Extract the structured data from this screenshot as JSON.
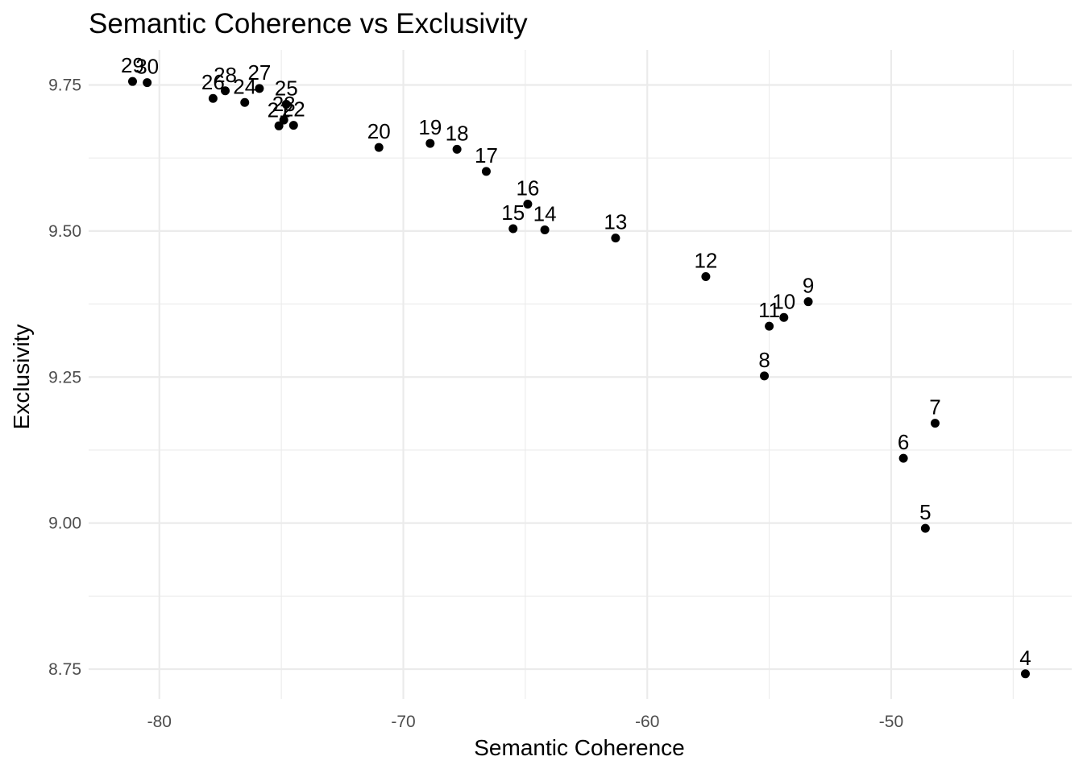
{
  "chart_data": {
    "type": "scatter",
    "title": "Semantic Coherence vs Exclusivity",
    "xlabel": "Semantic Coherence",
    "ylabel": "Exclusivity",
    "xlim": [
      -82.9,
      -42.6
    ],
    "ylim": [
      8.699,
      9.81
    ],
    "x_ticks": [
      -80,
      -70,
      -60,
      -50
    ],
    "y_ticks": [
      8.75,
      9.0,
      9.25,
      9.5,
      9.75
    ],
    "x_tick_labels": [
      "-80",
      "-70",
      "-60",
      "-50"
    ],
    "y_tick_labels": [
      "8.75",
      "9.00",
      "9.25",
      "9.50",
      "9.75"
    ],
    "grid": true,
    "points": [
      {
        "label": "4",
        "x": -44.5,
        "y": 8.742
      },
      {
        "label": "5",
        "x": -48.6,
        "y": 8.991
      },
      {
        "label": "6",
        "x": -49.5,
        "y": 9.111
      },
      {
        "label": "7",
        "x": -48.2,
        "y": 9.171
      },
      {
        "label": "8",
        "x": -55.2,
        "y": 9.252
      },
      {
        "label": "9",
        "x": -53.4,
        "y": 9.379
      },
      {
        "label": "10",
        "x": -54.4,
        "y": 9.352
      },
      {
        "label": "11",
        "x": -55.0,
        "y": 9.337
      },
      {
        "label": "12",
        "x": -57.6,
        "y": 9.422
      },
      {
        "label": "13",
        "x": -61.3,
        "y": 9.488
      },
      {
        "label": "14",
        "x": -64.2,
        "y": 9.502
      },
      {
        "label": "15",
        "x": -65.5,
        "y": 9.504
      },
      {
        "label": "16",
        "x": -64.9,
        "y": 9.546
      },
      {
        "label": "17",
        "x": -66.6,
        "y": 9.602
      },
      {
        "label": "18",
        "x": -67.8,
        "y": 9.64
      },
      {
        "label": "19",
        "x": -68.9,
        "y": 9.65
      },
      {
        "label": "20",
        "x": -71.0,
        "y": 9.643
      },
      {
        "label": "21",
        "x": -75.1,
        "y": 9.68
      },
      {
        "label": "22",
        "x": -74.5,
        "y": 9.681
      },
      {
        "label": "23",
        "x": -74.9,
        "y": 9.69
      },
      {
        "label": "24",
        "x": -76.5,
        "y": 9.72
      },
      {
        "label": "25",
        "x": -74.8,
        "y": 9.717
      },
      {
        "label": "26",
        "x": -77.8,
        "y": 9.727
      },
      {
        "label": "27",
        "x": -75.9,
        "y": 9.744
      },
      {
        "label": "28",
        "x": -77.3,
        "y": 9.74
      },
      {
        "label": "29",
        "x": -81.1,
        "y": 9.756
      },
      {
        "label": "30",
        "x": -80.5,
        "y": 9.754
      }
    ]
  }
}
